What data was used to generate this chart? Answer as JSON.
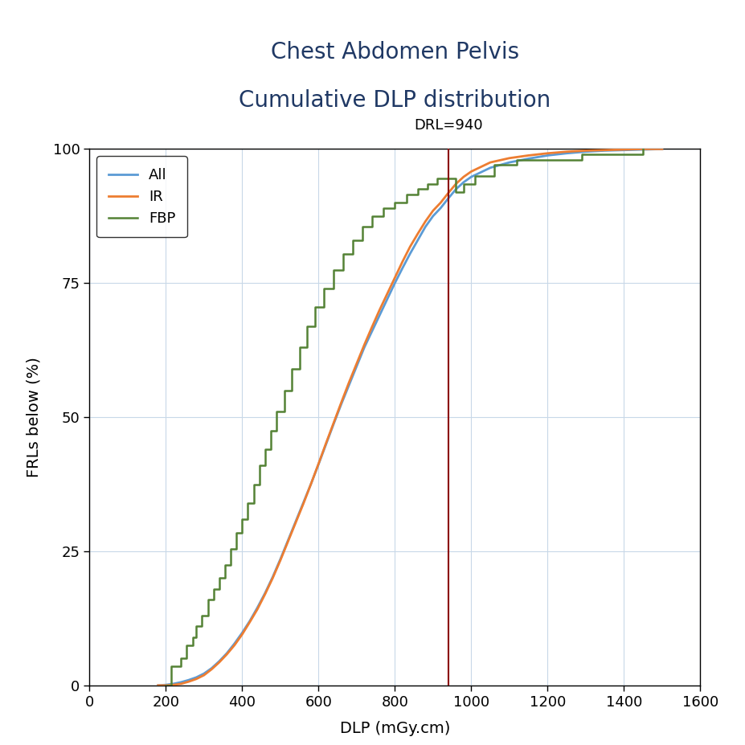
{
  "title_line1": "Chest Abdomen Pelvis",
  "title_line2": "Cumulative DLP distribution",
  "title_color": "#1f3864",
  "xlabel": "DLP (mGy.cm)",
  "ylabel": "FRLs below (%)",
  "xlim": [
    0,
    1600
  ],
  "ylim": [
    0,
    100
  ],
  "xticks": [
    0,
    200,
    400,
    600,
    800,
    1000,
    1200,
    1400,
    1600
  ],
  "yticks": [
    0,
    25,
    50,
    75,
    100
  ],
  "drl_value": 940,
  "drl_label": "DRL=940",
  "drl_color": "#8b0000",
  "grid_color": "#c8d8e8",
  "legend_labels": [
    "All",
    "IR",
    "FBP"
  ],
  "legend_colors": [
    "#5b9bd5",
    "#ed7d31",
    "#548235"
  ],
  "all_x": [
    180,
    200,
    220,
    240,
    260,
    280,
    300,
    320,
    340,
    360,
    380,
    400,
    420,
    440,
    460,
    480,
    500,
    520,
    540,
    560,
    580,
    600,
    620,
    640,
    660,
    680,
    700,
    720,
    740,
    760,
    780,
    800,
    820,
    840,
    860,
    880,
    900,
    920,
    940,
    960,
    980,
    1000,
    1050,
    1100,
    1150,
    1200,
    1250,
    1300,
    1350,
    1400,
    1450,
    1500
  ],
  "all_y": [
    0.0,
    0.1,
    0.3,
    0.6,
    1.0,
    1.5,
    2.2,
    3.2,
    4.5,
    6.0,
    7.8,
    9.8,
    12.0,
    14.5,
    17.2,
    20.2,
    23.5,
    27.0,
    30.5,
    34.0,
    37.5,
    41.2,
    45.0,
    48.8,
    52.5,
    56.0,
    59.5,
    63.0,
    66.0,
    69.0,
    72.0,
    75.0,
    77.8,
    80.5,
    83.0,
    85.5,
    87.5,
    89.0,
    90.8,
    92.5,
    93.8,
    94.8,
    96.5,
    97.5,
    98.2,
    98.8,
    99.2,
    99.5,
    99.7,
    99.8,
    99.9,
    100.0
  ],
  "ir_x": [
    180,
    200,
    220,
    240,
    260,
    280,
    300,
    320,
    340,
    360,
    380,
    400,
    420,
    440,
    460,
    480,
    500,
    520,
    540,
    560,
    580,
    600,
    620,
    640,
    660,
    680,
    700,
    720,
    740,
    760,
    780,
    800,
    820,
    840,
    860,
    880,
    900,
    920,
    940,
    960,
    980,
    1000,
    1050,
    1100,
    1150,
    1200,
    1250,
    1300,
    1350,
    1400,
    1450,
    1500
  ],
  "ir_y": [
    0.0,
    0.0,
    0.1,
    0.3,
    0.7,
    1.2,
    1.9,
    3.0,
    4.3,
    5.8,
    7.5,
    9.5,
    11.8,
    14.2,
    17.0,
    20.0,
    23.3,
    26.8,
    30.3,
    33.8,
    37.5,
    41.3,
    45.2,
    49.0,
    52.8,
    56.5,
    60.0,
    63.5,
    66.8,
    70.0,
    73.0,
    76.0,
    79.0,
    81.8,
    84.2,
    86.5,
    88.5,
    90.0,
    91.8,
    93.5,
    94.8,
    95.8,
    97.5,
    98.3,
    98.8,
    99.2,
    99.5,
    99.7,
    99.8,
    99.9,
    100.0,
    100.0
  ],
  "fbp_x": [
    200,
    215,
    240,
    255,
    270,
    280,
    295,
    310,
    325,
    340,
    355,
    370,
    385,
    400,
    415,
    430,
    445,
    460,
    475,
    490,
    510,
    530,
    550,
    570,
    590,
    615,
    640,
    665,
    690,
    715,
    740,
    770,
    800,
    830,
    860,
    885,
    910,
    960,
    980,
    1010,
    1060,
    1120,
    1290,
    1450
  ],
  "fbp_y": [
    0.0,
    3.5,
    5.0,
    7.5,
    9.0,
    11.0,
    13.0,
    16.0,
    18.0,
    20.0,
    22.5,
    25.5,
    28.5,
    31.0,
    34.0,
    37.5,
    41.0,
    44.0,
    47.5,
    51.0,
    55.0,
    59.0,
    63.0,
    67.0,
    70.5,
    74.0,
    77.5,
    80.5,
    83.0,
    85.5,
    87.5,
    89.0,
    90.0,
    91.5,
    92.5,
    93.5,
    94.5,
    92.0,
    93.5,
    95.0,
    97.0,
    98.0,
    99.0,
    100.0
  ]
}
